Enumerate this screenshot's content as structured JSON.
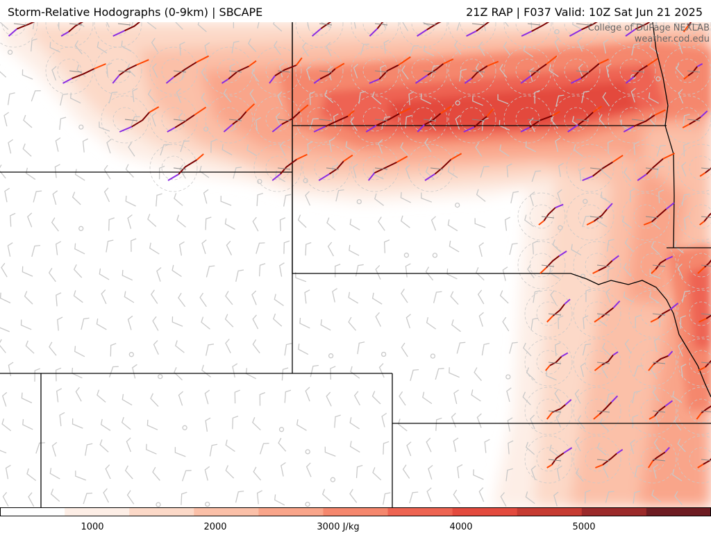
{
  "header": {
    "title_left": "Storm-Relative Hodographs (0-9km) | SBCAPE",
    "title_right": "21Z RAP | F037 Valid: 10Z Sat Jun 21 2025"
  },
  "credit": {
    "line1": "College of DuPage NEXLAB",
    "line2": "weather.cod.edu"
  },
  "colorbar": {
    "ticks": [
      "1000",
      "2000",
      "3000 J/kg",
      "4000",
      "5000"
    ],
    "colors": [
      "#ffffff",
      "#fdeee6",
      "#fcd9c8",
      "#fbc0a8",
      "#f9a58a",
      "#f5876d",
      "#ee6452",
      "#e34a3e",
      "#c63b32",
      "#9b2a2a",
      "#6e1c22"
    ]
  },
  "hodograph_colors": {
    "low": "#7a0000",
    "mid": "#ff4500",
    "upper": "#ffa500",
    "top": "#8a2be2"
  },
  "map": {
    "background": "#ffffff",
    "barb_color": "#c8c8c8",
    "border_color": "#000000"
  }
}
